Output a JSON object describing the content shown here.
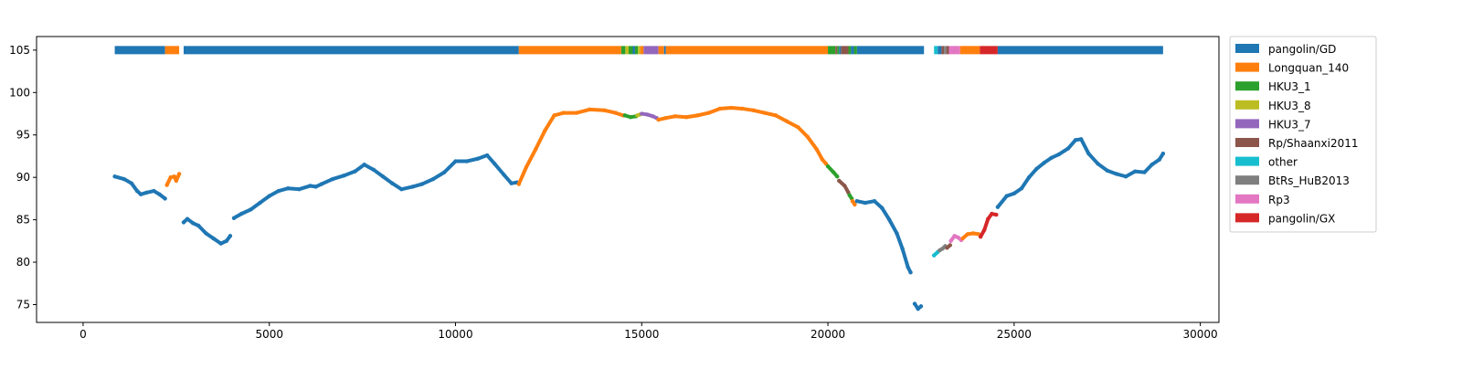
{
  "chart_data": {
    "type": "scatter",
    "title": "",
    "xlabel": "",
    "ylabel": "",
    "xlim": [
      -1250,
      30500
    ],
    "ylim": [
      72.9,
      106.6
    ],
    "xticks": [
      0,
      5000,
      10000,
      15000,
      20000,
      25000,
      30000
    ],
    "yticks": [
      75,
      80,
      85,
      90,
      95,
      100,
      105
    ],
    "grid": false,
    "legend_position": "right-outside",
    "series_colors": {
      "pangolin/GD": "#1f77b4",
      "Longquan_140": "#ff7f0e",
      "HKU3_1": "#2ca02c",
      "HKU3_8": "#bcbd22",
      "HKU3_7": "#9467bd",
      "Rp/Shaanxi2011": "#8c564b",
      "other": "#17becf",
      "BtRs_HuB2013": "#7f7f7f",
      "Rp3": "#e377c2",
      "pangolin/GX": "#d62728"
    },
    "legend": [
      "pangolin/GD",
      "Longquan_140",
      "HKU3_1",
      "HKU3_8",
      "HKU3_7",
      "Rp/Shaanxi2011",
      "other",
      "BtRs_HuB2013",
      "Rp3",
      "pangolin/GX"
    ],
    "bar_level": 105,
    "top_bar": [
      {
        "x0": 850,
        "x1": 2200,
        "label": "pangolin/GD"
      },
      {
        "x0": 2200,
        "x1": 2580,
        "label": "Longquan_140"
      },
      {
        "x0": 2700,
        "x1": 11700,
        "label": "pangolin/GD"
      },
      {
        "x0": 11700,
        "x1": 14450,
        "label": "Longquan_140"
      },
      {
        "x0": 14450,
        "x1": 14560,
        "label": "HKU3_1"
      },
      {
        "x0": 14560,
        "x1": 14650,
        "label": "HKU3_8"
      },
      {
        "x0": 14650,
        "x1": 14760,
        "label": "HKU3_1"
      },
      {
        "x0": 14760,
        "x1": 14820,
        "label": "pangolin/GD"
      },
      {
        "x0": 14820,
        "x1": 14900,
        "label": "HKU3_1"
      },
      {
        "x0": 14900,
        "x1": 14960,
        "label": "HKU3_8"
      },
      {
        "x0": 14960,
        "x1": 15050,
        "label": "Longquan_140"
      },
      {
        "x0": 15050,
        "x1": 15450,
        "label": "HKU3_7"
      },
      {
        "x0": 15450,
        "x1": 15600,
        "label": "Longquan_140"
      },
      {
        "x0": 15600,
        "x1": 15650,
        "label": "pangolin/GD"
      },
      {
        "x0": 15650,
        "x1": 20000,
        "label": "Longquan_140"
      },
      {
        "x0": 20000,
        "x1": 20200,
        "label": "HKU3_1"
      },
      {
        "x0": 20200,
        "x1": 20250,
        "label": "Rp/Shaanxi2011"
      },
      {
        "x0": 20250,
        "x1": 20300,
        "label": "HKU3_1"
      },
      {
        "x0": 20300,
        "x1": 20350,
        "label": "pangolin/GD"
      },
      {
        "x0": 20350,
        "x1": 20550,
        "label": "Rp/Shaanxi2011"
      },
      {
        "x0": 20550,
        "x1": 20620,
        "label": "HKU3_1"
      },
      {
        "x0": 20620,
        "x1": 20700,
        "label": "pangolin/GD"
      },
      {
        "x0": 20700,
        "x1": 20780,
        "label": "HKU3_1"
      },
      {
        "x0": 20780,
        "x1": 22580,
        "label": "pangolin/GD"
      },
      {
        "x0": 22850,
        "x1": 22950,
        "label": "other"
      },
      {
        "x0": 22950,
        "x1": 23050,
        "label": "pangolin/GD"
      },
      {
        "x0": 23050,
        "x1": 23120,
        "label": "Rp/Shaanxi2011"
      },
      {
        "x0": 23120,
        "x1": 23180,
        "label": "BtRs_HuB2013"
      },
      {
        "x0": 23180,
        "x1": 23250,
        "label": "Rp/Shaanxi2011"
      },
      {
        "x0": 23250,
        "x1": 23550,
        "label": "Rp3"
      },
      {
        "x0": 23550,
        "x1": 24080,
        "label": "Longquan_140"
      },
      {
        "x0": 24080,
        "x1": 24560,
        "label": "pangolin/GX"
      },
      {
        "x0": 24560,
        "x1": 29000,
        "label": "pangolin/GD"
      }
    ],
    "series": [
      {
        "name": "pangolin/GD",
        "points": [
          [
            850,
            90.1
          ],
          [
            1100,
            89.8
          ],
          [
            1300,
            89.3
          ],
          [
            1450,
            88.4
          ],
          [
            1550,
            88.0
          ],
          [
            1700,
            88.2
          ],
          [
            1900,
            88.4
          ],
          [
            2050,
            88.0
          ],
          [
            2200,
            87.5
          ]
        ]
      },
      {
        "name": "Longquan_140",
        "points": [
          [
            2250,
            89.1
          ],
          [
            2350,
            90.0
          ],
          [
            2450,
            90.1
          ],
          [
            2500,
            89.6
          ],
          [
            2580,
            90.4
          ]
        ]
      },
      {
        "name": "pangolin/GD",
        "points": [
          [
            2700,
            84.7
          ],
          [
            2800,
            85.1
          ],
          [
            2950,
            84.6
          ],
          [
            3100,
            84.3
          ],
          [
            3300,
            83.4
          ],
          [
            3500,
            82.8
          ],
          [
            3700,
            82.2
          ],
          [
            3850,
            82.5
          ],
          [
            3950,
            83.1
          ]
        ]
      },
      {
        "name": "pangolin/GD",
        "points": [
          [
            4050,
            85.2
          ],
          [
            4250,
            85.7
          ],
          [
            4500,
            86.2
          ],
          [
            4750,
            87.0
          ],
          [
            5000,
            87.8
          ],
          [
            5250,
            88.4
          ],
          [
            5500,
            88.7
          ],
          [
            5800,
            88.6
          ],
          [
            6100,
            89.0
          ],
          [
            6250,
            88.9
          ],
          [
            6400,
            89.2
          ],
          [
            6700,
            89.8
          ],
          [
            7000,
            90.2
          ],
          [
            7300,
            90.7
          ],
          [
            7550,
            91.5
          ],
          [
            7800,
            90.9
          ],
          [
            8050,
            90.1
          ],
          [
            8300,
            89.3
          ],
          [
            8550,
            88.6
          ],
          [
            8850,
            88.9
          ],
          [
            9100,
            89.2
          ],
          [
            9400,
            89.8
          ],
          [
            9700,
            90.6
          ],
          [
            10000,
            91.9
          ],
          [
            10300,
            91.9
          ],
          [
            10600,
            92.2
          ],
          [
            10850,
            92.6
          ],
          [
            11050,
            91.6
          ],
          [
            11300,
            90.3
          ],
          [
            11500,
            89.3
          ],
          [
            11650,
            89.4
          ]
        ]
      },
      {
        "name": "Longquan_140",
        "points": [
          [
            11700,
            89.2
          ],
          [
            11900,
            91.2
          ],
          [
            12150,
            93.3
          ],
          [
            12400,
            95.5
          ],
          [
            12650,
            97.3
          ],
          [
            12900,
            97.6
          ],
          [
            13250,
            97.6
          ],
          [
            13600,
            98.0
          ],
          [
            14000,
            97.9
          ],
          [
            14300,
            97.6
          ],
          [
            14500,
            97.3
          ]
        ]
      },
      {
        "name": "HKU3_1",
        "points": [
          [
            14550,
            97.3
          ],
          [
            14700,
            97.1
          ],
          [
            14850,
            97.2
          ]
        ]
      },
      {
        "name": "HKU3_8",
        "points": [
          [
            14880,
            97.3
          ],
          [
            14950,
            97.4
          ]
        ]
      },
      {
        "name": "HKU3_7",
        "points": [
          [
            15000,
            97.5
          ],
          [
            15150,
            97.4
          ],
          [
            15300,
            97.2
          ],
          [
            15400,
            97.0
          ]
        ]
      },
      {
        "name": "Longquan_140",
        "points": [
          [
            15450,
            96.8
          ],
          [
            15650,
            97.0
          ],
          [
            15900,
            97.2
          ],
          [
            16200,
            97.1
          ],
          [
            16500,
            97.3
          ],
          [
            16800,
            97.6
          ],
          [
            17100,
            98.1
          ],
          [
            17400,
            98.2
          ],
          [
            17700,
            98.1
          ],
          [
            18000,
            97.9
          ],
          [
            18300,
            97.6
          ],
          [
            18600,
            97.3
          ],
          [
            18900,
            96.6
          ],
          [
            19200,
            95.9
          ],
          [
            19450,
            94.8
          ],
          [
            19700,
            93.3
          ],
          [
            19850,
            92.1
          ],
          [
            19950,
            91.6
          ]
        ]
      },
      {
        "name": "HKU3_1",
        "points": [
          [
            20000,
            91.3
          ],
          [
            20150,
            90.6
          ],
          [
            20250,
            90.1
          ]
        ]
      },
      {
        "name": "Rp/Shaanxi2011",
        "points": [
          [
            20300,
            89.6
          ],
          [
            20450,
            89.0
          ],
          [
            20550,
            88.2
          ]
        ]
      },
      {
        "name": "HKU3_1",
        "points": [
          [
            20580,
            87.9
          ],
          [
            20640,
            87.5
          ]
        ]
      },
      {
        "name": "Longquan_140",
        "points": [
          [
            20660,
            87.2
          ],
          [
            20720,
            86.8
          ]
        ]
      },
      {
        "name": "pangolin/GD",
        "points": [
          [
            20780,
            87.2
          ],
          [
            21000,
            87.0
          ],
          [
            21250,
            87.2
          ],
          [
            21450,
            86.4
          ],
          [
            21650,
            85.0
          ],
          [
            21850,
            83.4
          ],
          [
            22000,
            81.6
          ],
          [
            22150,
            79.4
          ],
          [
            22220,
            78.8
          ]
        ]
      },
      {
        "name": "pangolin/GD",
        "points": [
          [
            22330,
            75.1
          ],
          [
            22420,
            74.5
          ],
          [
            22500,
            74.8
          ]
        ]
      },
      {
        "name": "other",
        "points": [
          [
            22850,
            80.8
          ],
          [
            22950,
            81.2
          ]
        ]
      },
      {
        "name": "BtRs_HuB2013",
        "points": [
          [
            23000,
            81.4
          ],
          [
            23080,
            81.6
          ],
          [
            23150,
            81.9
          ]
        ]
      },
      {
        "name": "Rp/Shaanxi2011",
        "points": [
          [
            23200,
            81.7
          ],
          [
            23280,
            82.0
          ]
        ]
      },
      {
        "name": "Rp3",
        "points": [
          [
            23300,
            82.5
          ],
          [
            23400,
            83.1
          ],
          [
            23500,
            82.9
          ],
          [
            23580,
            82.6
          ]
        ]
      },
      {
        "name": "Longquan_140",
        "points": [
          [
            23620,
            82.8
          ],
          [
            23750,
            83.3
          ],
          [
            23900,
            83.4
          ],
          [
            24050,
            83.3
          ]
        ]
      },
      {
        "name": "pangolin/GX",
        "points": [
          [
            24100,
            83.0
          ],
          [
            24200,
            83.8
          ],
          [
            24300,
            85.1
          ],
          [
            24400,
            85.7
          ],
          [
            24520,
            85.6
          ]
        ]
      },
      {
        "name": "pangolin/GD",
        "points": [
          [
            24560,
            86.5
          ],
          [
            24800,
            87.8
          ],
          [
            25000,
            88.1
          ],
          [
            25200,
            88.7
          ],
          [
            25400,
            90.0
          ],
          [
            25600,
            91.0
          ],
          [
            25800,
            91.7
          ],
          [
            26000,
            92.3
          ],
          [
            26200,
            92.7
          ],
          [
            26450,
            93.4
          ],
          [
            26650,
            94.4
          ],
          [
            26800,
            94.5
          ],
          [
            27000,
            92.8
          ],
          [
            27250,
            91.6
          ],
          [
            27500,
            90.8
          ],
          [
            27750,
            90.4
          ],
          [
            28000,
            90.1
          ],
          [
            28250,
            90.7
          ],
          [
            28500,
            90.6
          ],
          [
            28700,
            91.5
          ],
          [
            28900,
            92.1
          ],
          [
            29000,
            92.8
          ]
        ]
      }
    ]
  }
}
